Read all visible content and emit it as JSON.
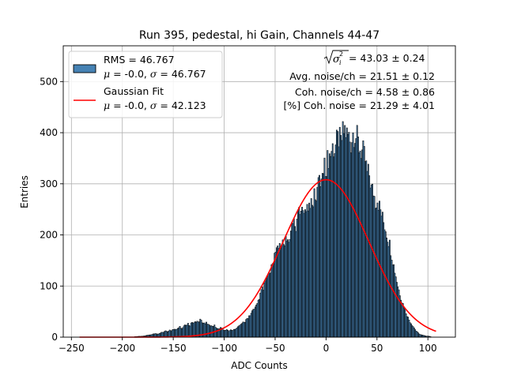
{
  "chart_data": {
    "type": "bar",
    "title": "Run 395, pedestal, hi Gain, Channels 44-47",
    "xlabel": "ADC Counts",
    "ylabel": "Entries",
    "xlim": [
      -258,
      127
    ],
    "ylim": [
      0,
      570
    ],
    "grid": true,
    "legend_placement": "top-left",
    "x_ticks": [
      -250,
      -200,
      -150,
      -100,
      -50,
      0,
      50,
      100
    ],
    "y_ticks": [
      0,
      100,
      200,
      300,
      400,
      500
    ],
    "bin_width": 1,
    "histogram_color": "#4682b4",
    "fit_color": "#ff0000",
    "histogram": [
      [
        -188,
        1
      ],
      [
        -180,
        2
      ],
      [
        -175,
        4
      ],
      [
        -172,
        5
      ],
      [
        -168,
        7
      ],
      [
        -165,
        6
      ],
      [
        -162,
        9
      ],
      [
        -160,
        10
      ],
      [
        -158,
        12
      ],
      [
        -156,
        11
      ],
      [
        -154,
        14
      ],
      [
        -152,
        12
      ],
      [
        -150,
        16
      ],
      [
        -148,
        15
      ],
      [
        -146,
        18
      ],
      [
        -144,
        20
      ],
      [
        -142,
        17
      ],
      [
        -140,
        22
      ],
      [
        -138,
        24
      ],
      [
        -136,
        26
      ],
      [
        -134,
        22
      ],
      [
        -132,
        30
      ],
      [
        -130,
        28
      ],
      [
        -128,
        31
      ],
      [
        -126,
        29
      ],
      [
        -124,
        33
      ],
      [
        -122,
        30
      ],
      [
        -120,
        27
      ],
      [
        -118,
        29
      ],
      [
        -116,
        25
      ],
      [
        -114,
        22
      ],
      [
        -112,
        20
      ],
      [
        -110,
        23
      ],
      [
        -108,
        18
      ],
      [
        -106,
        16
      ],
      [
        -104,
        19
      ],
      [
        -102,
        15
      ],
      [
        -100,
        13
      ],
      [
        -98,
        14
      ],
      [
        -96,
        12
      ],
      [
        -94,
        15
      ],
      [
        -92,
        13
      ],
      [
        -90,
        16
      ],
      [
        -88,
        18
      ],
      [
        -86,
        22
      ],
      [
        -84,
        24
      ],
      [
        -82,
        28
      ],
      [
        -80,
        30
      ],
      [
        -78,
        35
      ],
      [
        -76,
        40
      ],
      [
        -74,
        45
      ],
      [
        -72,
        52
      ],
      [
        -70,
        58
      ],
      [
        -68,
        65
      ],
      [
        -66,
        75
      ],
      [
        -64,
        88
      ],
      [
        -62,
        96
      ],
      [
        -60,
        105
      ],
      [
        -58,
        115
      ],
      [
        -56,
        125
      ],
      [
        -54,
        140
      ],
      [
        -52,
        150
      ],
      [
        -50,
        162
      ],
      [
        -48,
        170
      ],
      [
        -46,
        178
      ],
      [
        -44,
        186
      ],
      [
        -42,
        180
      ],
      [
        -40,
        200
      ],
      [
        -38,
        190
      ],
      [
        -36,
        205
      ],
      [
        -34,
        215
      ],
      [
        -32,
        225
      ],
      [
        -30,
        222
      ],
      [
        -28,
        235
      ],
      [
        -26,
        240
      ],
      [
        -24,
        242
      ],
      [
        -22,
        248
      ],
      [
        -20,
        255
      ],
      [
        -18,
        252
      ],
      [
        -16,
        268
      ],
      [
        -14,
        270
      ],
      [
        -12,
        278
      ],
      [
        -10,
        285
      ],
      [
        -8,
        305
      ],
      [
        -6,
        300
      ],
      [
        -4,
        315
      ],
      [
        -2,
        330
      ],
      [
        0,
        338
      ],
      [
        2,
        352
      ],
      [
        4,
        360
      ],
      [
        6,
        372
      ],
      [
        8,
        368
      ],
      [
        10,
        380
      ],
      [
        12,
        390
      ],
      [
        14,
        378
      ],
      [
        16,
        398
      ],
      [
        18,
        406
      ],
      [
        20,
        395
      ],
      [
        22,
        392
      ],
      [
        24,
        380
      ],
      [
        26,
        400
      ],
      [
        28,
        398
      ],
      [
        30,
        388
      ],
      [
        32,
        372
      ],
      [
        34,
        365
      ],
      [
        36,
        360
      ],
      [
        38,
        345
      ],
      [
        40,
        320
      ],
      [
        42,
        318
      ],
      [
        44,
        290
      ],
      [
        46,
        285
      ],
      [
        48,
        265
      ],
      [
        50,
        270
      ],
      [
        52,
        255
      ],
      [
        54,
        240
      ],
      [
        56,
        225
      ],
      [
        58,
        212
      ],
      [
        60,
        195
      ],
      [
        62,
        182
      ],
      [
        64,
        160
      ],
      [
        66,
        140
      ],
      [
        68,
        120
      ],
      [
        70,
        100
      ],
      [
        72,
        85
      ],
      [
        74,
        70
      ],
      [
        76,
        60
      ],
      [
        78,
        48
      ],
      [
        80,
        38
      ],
      [
        82,
        30
      ],
      [
        84,
        24
      ],
      [
        86,
        18
      ],
      [
        88,
        12
      ],
      [
        90,
        8
      ],
      [
        92,
        5
      ],
      [
        94,
        4
      ],
      [
        96,
        3
      ],
      [
        98,
        2
      ],
      [
        100,
        2
      ],
      [
        102,
        1
      ]
    ],
    "gaussian_fit": {
      "mu": 0.0,
      "sigma": 42.123,
      "amplitude": 308,
      "x_range": [
        -242,
        108
      ]
    },
    "legend": [
      {
        "label": "RMS = 46.767",
        "sublabel_prefix": "μ",
        "sublabel": " = -0.0, ",
        "sublabel_sigma": "σ",
        "sublabel_value": " = 46.767"
      },
      {
        "label": "Gaussian Fit",
        "sublabel_prefix": "μ",
        "sublabel": " = -0.0, ",
        "sublabel_sigma": "σ",
        "sublabel_value": " = 42.123"
      }
    ],
    "annotations": {
      "sigma_sqrt_value": " = 43.03 ± 0.24",
      "avg_noise": "Avg. noise/ch = 21.51 ± 0.12",
      "coh_noise": "Coh. noise/ch = 4.58 ± 0.86",
      "pct_coh_noise": "[%] Coh. noise = 21.29 ± 4.01"
    }
  }
}
